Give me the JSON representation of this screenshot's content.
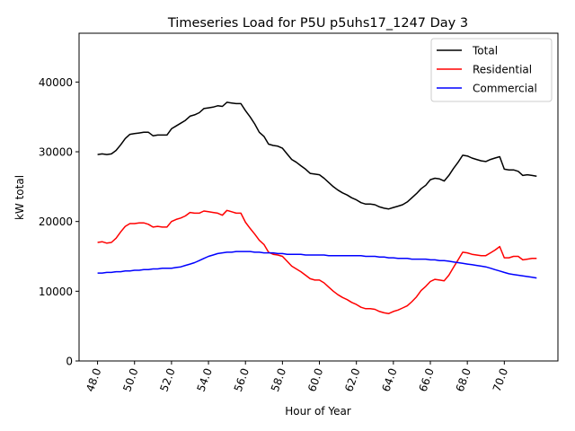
{
  "chart_data": {
    "type": "line",
    "title": "Timeseries Load for P5U p5uhs17_1247  Day 3",
    "xlabel": "Hour of Year",
    "ylabel": "kW total",
    "xlim": [
      47.0,
      72.9
    ],
    "ylim": [
      0,
      47000
    ],
    "xticks": [
      48,
      50,
      52,
      54,
      56,
      58,
      60,
      62,
      64,
      66,
      68,
      70
    ],
    "xtick_labels": [
      "48.0",
      "50.0",
      "52.0",
      "54.0",
      "56.0",
      "58.0",
      "60.0",
      "62.0",
      "64.0",
      "66.0",
      "68.0",
      "70.0"
    ],
    "yticks": [
      0,
      10000,
      20000,
      30000,
      40000
    ],
    "ytick_labels": [
      "0",
      "10000",
      "20000",
      "30000",
      "40000"
    ],
    "legend_position": "top-right",
    "series": [
      {
        "name": "Total",
        "color": "#000000",
        "x": [
          48.0,
          48.25,
          48.5,
          48.75,
          49.0,
          49.25,
          49.5,
          49.75,
          50.0,
          50.25,
          50.5,
          50.75,
          51.0,
          51.25,
          51.5,
          51.75,
          52.0,
          52.25,
          52.5,
          52.75,
          53.0,
          53.25,
          53.5,
          53.75,
          54.0,
          54.25,
          54.5,
          54.75,
          55.0,
          55.25,
          55.5,
          55.75,
          56.0,
          56.25,
          56.5,
          56.75,
          57.0,
          57.25,
          57.5,
          57.75,
          58.0,
          58.25,
          58.5,
          58.75,
          59.0,
          59.25,
          59.5,
          59.75,
          60.0,
          60.25,
          60.5,
          60.75,
          61.0,
          61.25,
          61.5,
          61.75,
          62.0,
          62.25,
          62.5,
          62.75,
          63.0,
          63.25,
          63.5,
          63.75,
          64.0,
          64.25,
          64.5,
          64.75,
          65.0,
          65.25,
          65.5,
          65.75,
          66.0,
          66.25,
          66.5,
          66.75,
          67.0,
          67.25,
          67.5,
          67.75,
          68.0,
          68.25,
          68.5,
          68.75,
          69.0,
          69.25,
          69.5,
          69.75,
          70.0,
          70.25,
          70.5,
          70.75,
          71.0,
          71.25,
          71.5,
          71.75
        ],
        "values": [
          29600,
          29700,
          29600,
          29700,
          30200,
          31000,
          31900,
          32500,
          32600,
          32700,
          32800,
          32800,
          32300,
          32400,
          32400,
          32400,
          33300,
          33700,
          34100,
          34500,
          35100,
          35300,
          35600,
          36200,
          36300,
          36400,
          36600,
          36500,
          37100,
          37000,
          36900,
          36900,
          35900,
          35000,
          34000,
          32800,
          32200,
          31100,
          30900,
          30800,
          30500,
          29700,
          28900,
          28500,
          28000,
          27500,
          26900,
          26800,
          26700,
          26200,
          25600,
          25000,
          24500,
          24100,
          23800,
          23400,
          23100,
          22700,
          22500,
          22500,
          22400,
          22100,
          21900,
          21800,
          22000,
          22200,
          22400,
          22800,
          23400,
          24000,
          24700,
          25200,
          26000,
          26200,
          26100,
          25800,
          26600,
          27600,
          28500,
          29500,
          29400,
          29100,
          28900,
          28700,
          28600,
          28900,
          29100,
          29300,
          27500,
          27400,
          27400,
          27200,
          26600,
          26700,
          26600,
          26500
        ]
      },
      {
        "name": "Residential",
        "color": "#ff0000",
        "x": [
          48.0,
          48.25,
          48.5,
          48.75,
          49.0,
          49.25,
          49.5,
          49.75,
          50.0,
          50.25,
          50.5,
          50.75,
          51.0,
          51.25,
          51.5,
          51.75,
          52.0,
          52.25,
          52.5,
          52.75,
          53.0,
          53.25,
          53.5,
          53.75,
          54.0,
          54.25,
          54.5,
          54.75,
          55.0,
          55.25,
          55.5,
          55.75,
          56.0,
          56.25,
          56.5,
          56.75,
          57.0,
          57.25,
          57.5,
          57.75,
          58.0,
          58.25,
          58.5,
          58.75,
          59.0,
          59.25,
          59.5,
          59.75,
          60.0,
          60.25,
          60.5,
          60.75,
          61.0,
          61.25,
          61.5,
          61.75,
          62.0,
          62.25,
          62.5,
          62.75,
          63.0,
          63.25,
          63.5,
          63.75,
          64.0,
          64.25,
          64.5,
          64.75,
          65.0,
          65.25,
          65.5,
          65.75,
          66.0,
          66.25,
          66.5,
          66.75,
          67.0,
          67.25,
          67.5,
          67.75,
          68.0,
          68.25,
          68.5,
          68.75,
          69.0,
          69.25,
          69.5,
          69.75,
          70.0,
          70.25,
          70.5,
          70.75,
          71.0,
          71.25,
          71.5,
          71.75
        ],
        "values": [
          17000,
          17100,
          16900,
          17000,
          17600,
          18500,
          19300,
          19700,
          19700,
          19800,
          19800,
          19600,
          19200,
          19300,
          19200,
          19200,
          20000,
          20300,
          20500,
          20800,
          21300,
          21200,
          21200,
          21500,
          21400,
          21300,
          21200,
          20900,
          21600,
          21400,
          21200,
          21200,
          19900,
          19000,
          18200,
          17300,
          16700,
          15600,
          15300,
          15200,
          15000,
          14300,
          13600,
          13200,
          12800,
          12300,
          11800,
          11600,
          11600,
          11200,
          10600,
          10000,
          9500,
          9100,
          8800,
          8400,
          8100,
          7700,
          7500,
          7500,
          7400,
          7100,
          6900,
          6800,
          7100,
          7300,
          7600,
          7900,
          8500,
          9200,
          10100,
          10700,
          11400,
          11700,
          11600,
          11500,
          12300,
          13400,
          14500,
          15600,
          15500,
          15300,
          15200,
          15100,
          15100,
          15500,
          15900,
          16400,
          14800,
          14800,
          15000,
          15000,
          14500,
          14600,
          14700,
          14700
        ]
      },
      {
        "name": "Commercial",
        "color": "#0000ff",
        "x": [
          48.0,
          48.25,
          48.5,
          48.75,
          49.0,
          49.25,
          49.5,
          49.75,
          50.0,
          50.25,
          50.5,
          50.75,
          51.0,
          51.25,
          51.5,
          51.75,
          52.0,
          52.25,
          52.5,
          52.75,
          53.0,
          53.25,
          53.5,
          53.75,
          54.0,
          54.25,
          54.5,
          54.75,
          55.0,
          55.25,
          55.5,
          55.75,
          56.0,
          56.25,
          56.5,
          56.75,
          57.0,
          57.25,
          57.5,
          57.75,
          58.0,
          58.25,
          58.5,
          58.75,
          59.0,
          59.25,
          59.5,
          59.75,
          60.0,
          60.25,
          60.5,
          60.75,
          61.0,
          61.25,
          61.5,
          61.75,
          62.0,
          62.25,
          62.5,
          62.75,
          63.0,
          63.25,
          63.5,
          63.75,
          64.0,
          64.25,
          64.5,
          64.75,
          65.0,
          65.25,
          65.5,
          65.75,
          66.0,
          66.25,
          66.5,
          66.75,
          67.0,
          67.25,
          67.5,
          67.75,
          68.0,
          68.25,
          68.5,
          68.75,
          69.0,
          69.25,
          69.5,
          69.75,
          70.0,
          70.25,
          70.5,
          70.75,
          71.0,
          71.25,
          71.5,
          71.75
        ],
        "values": [
          12600,
          12600,
          12700,
          12700,
          12800,
          12800,
          12900,
          12900,
          13000,
          13000,
          13100,
          13100,
          13200,
          13200,
          13300,
          13300,
          13300,
          13400,
          13500,
          13700,
          13900,
          14100,
          14400,
          14700,
          15000,
          15200,
          15400,
          15500,
          15600,
          15600,
          15700,
          15700,
          15700,
          15700,
          15600,
          15600,
          15500,
          15500,
          15500,
          15400,
          15400,
          15300,
          15300,
          15300,
          15300,
          15200,
          15200,
          15200,
          15200,
          15200,
          15100,
          15100,
          15100,
          15100,
          15100,
          15100,
          15100,
          15100,
          15000,
          15000,
          15000,
          14900,
          14900,
          14800,
          14800,
          14700,
          14700,
          14700,
          14600,
          14600,
          14600,
          14600,
          14500,
          14500,
          14400,
          14400,
          14300,
          14200,
          14100,
          14000,
          13900,
          13800,
          13700,
          13600,
          13500,
          13300,
          13100,
          12900,
          12700,
          12500,
          12400,
          12300,
          12200,
          12100,
          12000,
          11900
        ]
      }
    ]
  }
}
